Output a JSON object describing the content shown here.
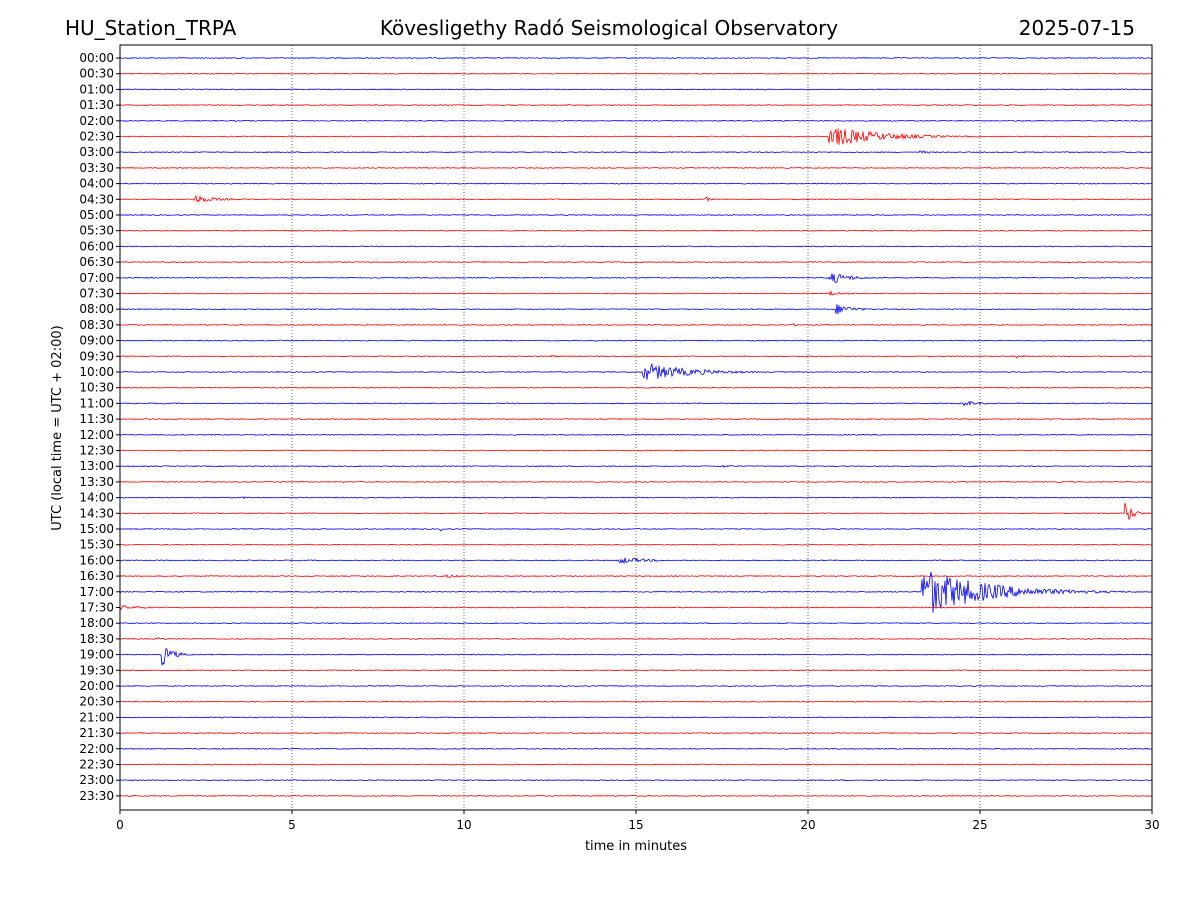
{
  "header": {
    "station": "HU_Station_TRPA",
    "observatory": "Kövesligethy Radó Seismological Observatory",
    "date": "2025-07-15"
  },
  "chart_data": {
    "type": "line",
    "title": "Kövesligethy Radó Seismological Observatory",
    "xlabel": "time in minutes",
    "ylabel": "UTC (local time = UTC + 02:00)",
    "xlim": [
      0,
      30
    ],
    "x_ticks": [
      0,
      5,
      10,
      15,
      20,
      25,
      30
    ],
    "vertical_gridlines": [
      5,
      10,
      15,
      20,
      25
    ],
    "grid": "vertical dotted",
    "row_labels": [
      "00:00",
      "00:30",
      "01:00",
      "01:30",
      "02:00",
      "02:30",
      "03:00",
      "03:30",
      "04:00",
      "04:30",
      "05:00",
      "05:30",
      "06:00",
      "06:30",
      "07:00",
      "07:30",
      "08:00",
      "08:30",
      "09:00",
      "09:30",
      "10:00",
      "10:30",
      "11:00",
      "11:30",
      "12:00",
      "12:30",
      "13:00",
      "13:30",
      "14:00",
      "14:30",
      "15:00",
      "15:30",
      "16:00",
      "16:30",
      "17:00",
      "17:30",
      "18:00",
      "18:30",
      "19:00",
      "19:30",
      "20:00",
      "20:30",
      "21:00",
      "21:30",
      "22:00",
      "22:30",
      "23:00",
      "23:30"
    ],
    "row_colors": [
      "#0000ff",
      "#ff0000"
    ],
    "baseline_noise": 0.06,
    "events": [
      {
        "row": "00:00",
        "t": 17.8,
        "amp": 0.15,
        "dur": 0.2
      },
      {
        "row": "00:00",
        "t": 20.0,
        "amp": 0.12,
        "dur": 0.2
      },
      {
        "row": "01:00",
        "t": 17.8,
        "amp": 0.2,
        "dur": 0.2
      },
      {
        "row": "02:30",
        "t": 20.6,
        "amp": 1.5,
        "dur": 5.5
      },
      {
        "row": "03:00",
        "t": 23.2,
        "amp": 0.35,
        "dur": 1.0
      },
      {
        "row": "04:30",
        "t": 2.1,
        "amp": 0.6,
        "dur": 2.5
      },
      {
        "row": "04:30",
        "t": 17.0,
        "amp": 0.45,
        "dur": 0.6
      },
      {
        "row": "05:00",
        "t": 10.8,
        "amp": 0.25,
        "dur": 0.5
      },
      {
        "row": "05:00",
        "t": 21.3,
        "amp": 0.25,
        "dur": 0.6
      },
      {
        "row": "07:00",
        "t": 20.6,
        "amp": 0.9,
        "dur": 2.2
      },
      {
        "row": "07:30",
        "t": 20.6,
        "amp": 0.35,
        "dur": 2.0
      },
      {
        "row": "08:00",
        "t": 20.8,
        "amp": 0.8,
        "dur": 1.8
      },
      {
        "row": "08:30",
        "t": 19.5,
        "amp": 0.2,
        "dur": 1.0
      },
      {
        "row": "09:30",
        "t": 12.5,
        "amp": 0.25,
        "dur": 0.8
      },
      {
        "row": "09:30",
        "t": 26.0,
        "amp": 0.3,
        "dur": 1.2
      },
      {
        "row": "10:00",
        "t": 15.2,
        "amp": 1.3,
        "dur": 5.0
      },
      {
        "row": "11:00",
        "t": 24.5,
        "amp": 0.4,
        "dur": 2.0
      },
      {
        "row": "13:00",
        "t": 17.5,
        "amp": 0.2,
        "dur": 2.0
      },
      {
        "row": "14:00",
        "t": 3.5,
        "amp": 0.2,
        "dur": 1.0
      },
      {
        "row": "14:00",
        "t": 10.0,
        "amp": 0.2,
        "dur": 1.0
      },
      {
        "row": "14:30",
        "t": 29.2,
        "amp": 2.0,
        "dur": 0.8
      },
      {
        "row": "15:00",
        "t": 9.3,
        "amp": 0.35,
        "dur": 0.5
      },
      {
        "row": "16:00",
        "t": 14.5,
        "amp": 0.5,
        "dur": 3.0
      },
      {
        "row": "16:30",
        "t": 9.5,
        "amp": 0.3,
        "dur": 1.5
      },
      {
        "row": "17:00",
        "t": 23.3,
        "amp": 3.5,
        "dur": 6.7
      },
      {
        "row": "17:30",
        "t": 0.0,
        "amp": 0.3,
        "dur": 3.0
      },
      {
        "row": "18:30",
        "t": 1.0,
        "amp": 0.2,
        "dur": 2.0
      },
      {
        "row": "19:00",
        "t": 1.2,
        "amp": 1.6,
        "dur": 1.2
      }
    ]
  }
}
